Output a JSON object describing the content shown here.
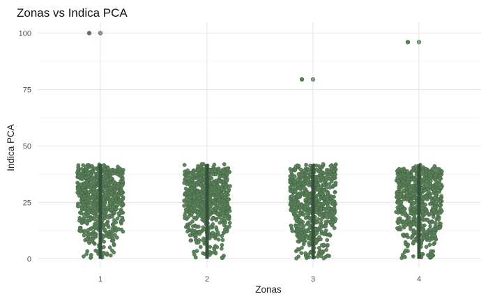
{
  "chart_data": {
    "type": "scatter",
    "title": "Zonas vs Indica PCA",
    "xlabel": "Zonas",
    "ylabel": "Indica PCA",
    "categories": [
      "1",
      "2",
      "3",
      "4"
    ],
    "x_ticks": [
      "1",
      "2",
      "3",
      "4"
    ],
    "y_ticks": [
      "0",
      "25",
      "50",
      "75",
      "100"
    ],
    "ylim": [
      -3,
      105
    ],
    "grid": true,
    "jitter": true,
    "colors": {
      "point": "#5a8058",
      "point_stroke": "#3e5e3d",
      "range_line": "#36523a"
    },
    "summary_ranges": [
      {
        "category": "1",
        "min": 0,
        "max": 42
      },
      {
        "category": "2",
        "min": 0,
        "max": 42
      },
      {
        "category": "3",
        "min": 0,
        "max": 42
      },
      {
        "category": "4",
        "min": 0,
        "max": 42
      }
    ],
    "outliers": [
      {
        "category": "1",
        "value": 100
      },
      {
        "category": "1",
        "value": 100
      },
      {
        "category": "3",
        "value": 79.5
      },
      {
        "category": "3",
        "value": 79.5
      },
      {
        "category": "4",
        "value": 96
      },
      {
        "category": "4",
        "value": 96
      }
    ],
    "distribution": {
      "points_per_category": 700,
      "dense_range": [
        20,
        40
      ],
      "full_range": [
        0,
        42
      ]
    }
  }
}
